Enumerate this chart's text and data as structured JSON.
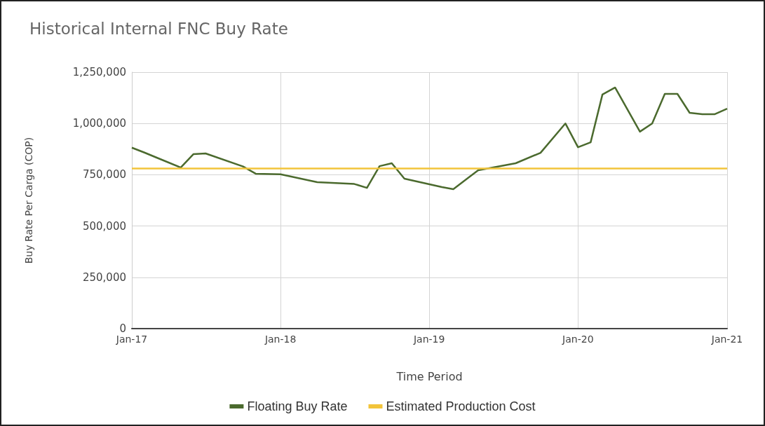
{
  "chart_data": {
    "type": "line",
    "title": "Historical Internal FNC Buy Rate",
    "xlabel": "Time Period",
    "ylabel": "Buy Rate Per Carga (COP)",
    "series": [
      {
        "name": "Floating Buy Rate",
        "color": "#4b6a2e",
        "x": [
          "2017-01",
          "2017-02",
          "2017-03",
          "2017-05",
          "2017-06",
          "2017-07",
          "2017-10",
          "2017-11",
          "2018-01",
          "2018-04",
          "2018-07",
          "2018-08",
          "2018-09",
          "2018-10",
          "2018-11",
          "2019-02",
          "2019-03",
          "2019-05",
          "2019-08",
          "2019-10",
          "2019-12",
          "2020-01",
          "2020-02",
          "2020-03",
          "2020-04",
          "2020-06",
          "2020-07",
          "2020-08",
          "2020-09",
          "2020-10",
          "2020-11",
          "2020-12",
          "2021-01"
        ],
        "values": [
          882000,
          858000,
          835000,
          785000,
          850000,
          854000,
          790000,
          755000,
          752000,
          714000,
          705000,
          686000,
          792000,
          806000,
          731000,
          690000,
          680000,
          772000,
          806000,
          857000,
          1000000,
          884000,
          908000,
          1141000,
          1175000,
          960000,
          1000000,
          1144000,
          1144000,
          1052000,
          1045000,
          1045000,
          1072000
        ]
      },
      {
        "name": "Estimated Production Cost",
        "color": "#f2c43a",
        "x": [
          "2017-01",
          "2021-01"
        ],
        "values": [
          780000,
          780000
        ]
      }
    ],
    "xlim": [
      "2017-01",
      "2021-01"
    ],
    "xticks": [
      {
        "value": "2017-01",
        "label": "Jan-17"
      },
      {
        "value": "2018-01",
        "label": "Jan-18"
      },
      {
        "value": "2019-01",
        "label": "Jan-19"
      },
      {
        "value": "2020-01",
        "label": "Jan-20"
      },
      {
        "value": "2021-01",
        "label": "Jan-21"
      }
    ],
    "ylim": [
      0,
      1250000
    ],
    "yticks": [
      0,
      {
        "value": 250000,
        "label": "250,000"
      },
      {
        "value": 500000,
        "label": "500,000"
      },
      {
        "value": 750000,
        "label": "750,000"
      },
      {
        "value": 1000000,
        "label": "1,000,000"
      },
      {
        "value": 1250000,
        "label": "1,250,000"
      }
    ],
    "grid": true,
    "legend": "bottom",
    "marker": "none",
    "line_style": "solid"
  }
}
